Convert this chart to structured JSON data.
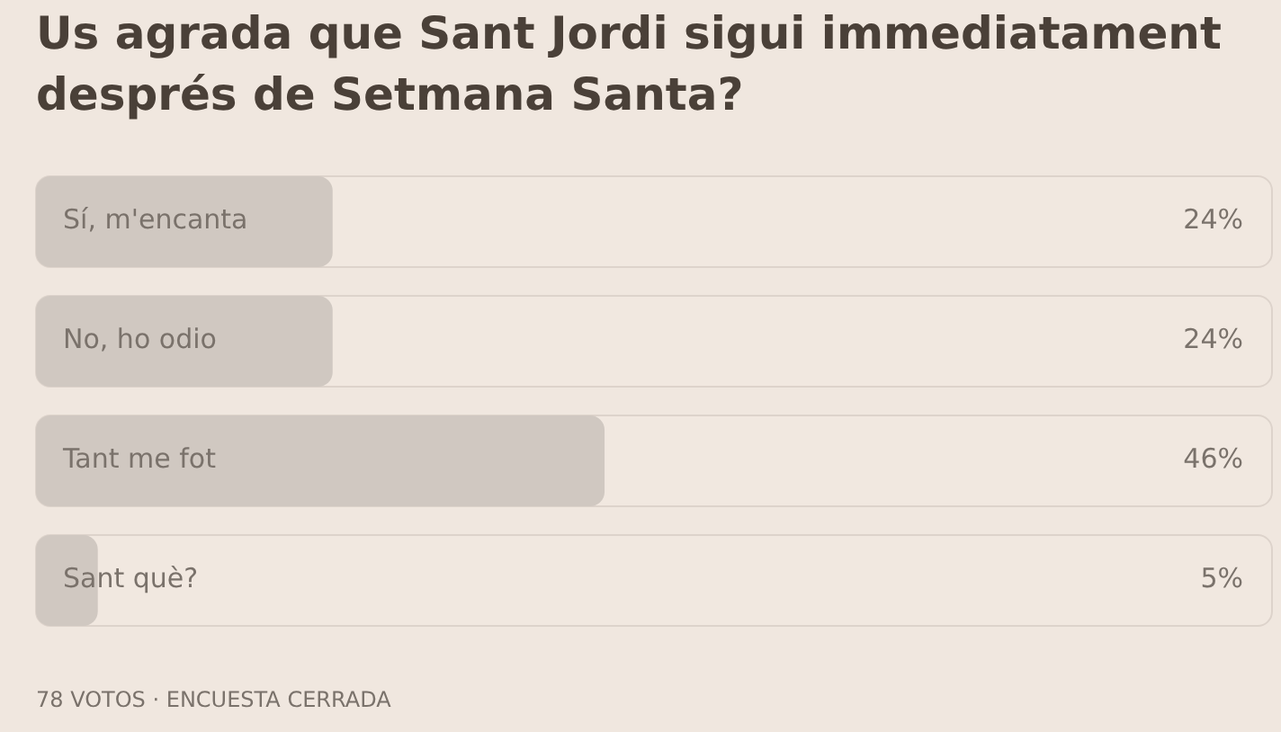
{
  "chart_data": {
    "type": "bar",
    "orientation": "horizontal",
    "title": "Us agrada que Sant Jordi sigui immediatament després de Setmana Santa?",
    "categories": [
      "Sí, m'encanta",
      "No, ho odio",
      "Tant me fot",
      "Sant què?"
    ],
    "values": [
      24,
      24,
      46,
      5
    ],
    "value_labels": [
      "24%",
      "24%",
      "46%",
      "5%"
    ],
    "color": "#d0c8c1",
    "xlim": [
      0,
      100
    ],
    "tick_labels": "y",
    "legend": false,
    "annotations": [
      "78 VOTOS · ENCUESTA CERRADA"
    ]
  }
}
